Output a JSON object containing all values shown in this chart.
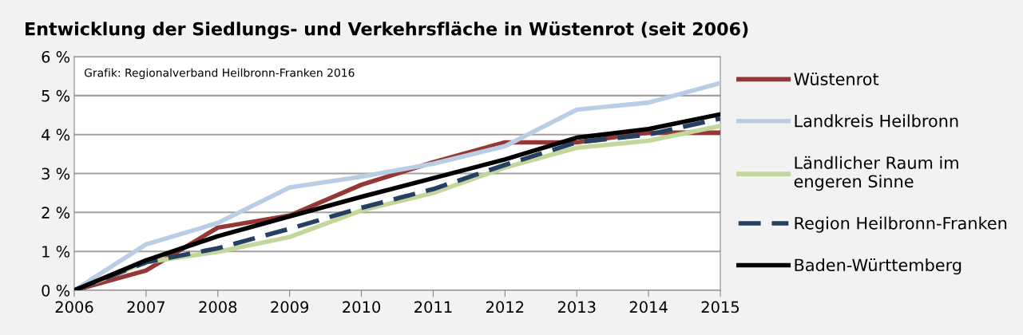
{
  "chart_data": {
    "type": "line",
    "title": "Entwicklung der Siedlungs- und Verkehrsfläche in Wüstenrot (seit 2006)",
    "annotations": [
      "Grafik: Regionalverband Heilbronn-Franken 2016"
    ],
    "x": [
      2006,
      2007,
      2008,
      2009,
      2010,
      2011,
      2012,
      2013,
      2014,
      2015
    ],
    "series": [
      {
        "name": "Wüstenrot",
        "color": "#953735",
        "values": [
          0,
          0.51,
          1.61,
          1.92,
          2.71,
          3.29,
          3.8,
          3.8,
          4.05,
          4.05
        ]
      },
      {
        "name": "Landkreis Heilbronn",
        "color": "#b9cde5",
        "values": [
          0,
          1.18,
          1.73,
          2.64,
          2.92,
          3.25,
          3.7,
          4.64,
          4.82,
          5.32
        ]
      },
      {
        "name": "Ländlicher Raum im\nengeren Sinne",
        "color": "#c3d69b",
        "values": [
          0,
          0.72,
          0.99,
          1.37,
          2.05,
          2.5,
          3.15,
          3.66,
          3.84,
          4.22
        ]
      },
      {
        "name": "Region Heilbronn-Franken",
        "color": "#254061",
        "line_style": "dashed",
        "values": [
          0,
          0.72,
          1.08,
          1.58,
          2.12,
          2.6,
          3.22,
          3.8,
          4.0,
          4.41
        ]
      },
      {
        "name": "Baden-Württemberg",
        "color": "#000000",
        "values": [
          0,
          0.77,
          1.39,
          1.9,
          2.4,
          2.88,
          3.36,
          3.92,
          4.14,
          4.52
        ]
      }
    ],
    "xlim": [
      2006,
      2015
    ],
    "xticks": [
      2006,
      2007,
      2008,
      2009,
      2010,
      2011,
      2012,
      2013,
      2014,
      2015
    ],
    "ylim": [
      0,
      6
    ],
    "yticks": [
      {
        "value": 0,
        "label": "0 %"
      },
      {
        "value": 1,
        "label": "1 %"
      },
      {
        "value": 2,
        "label": "2 %"
      },
      {
        "value": 3,
        "label": "3 %"
      },
      {
        "value": 4,
        "label": "4 %"
      },
      {
        "value": 5,
        "label": "5 %"
      },
      {
        "value": 6,
        "label": "6 %"
      }
    ],
    "grid": "y",
    "legend": "right",
    "line_style": "solid"
  }
}
